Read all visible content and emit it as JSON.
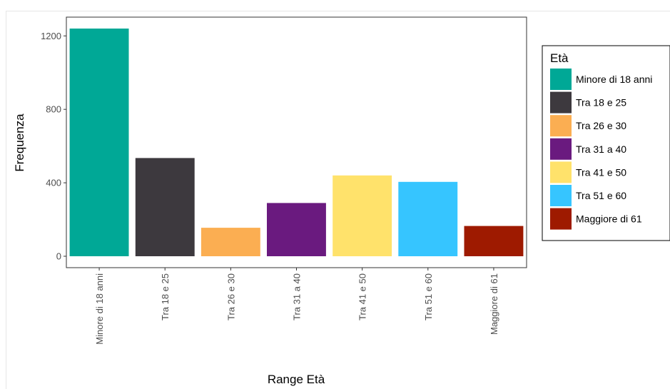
{
  "chart_data": {
    "type": "bar",
    "title": "",
    "xlabel": "Range Età",
    "ylabel": "Frequenza",
    "ylim": [
      0,
      1290
    ],
    "yticks": [
      0,
      400,
      800,
      1200
    ],
    "categories": [
      "Minore di 18 anni",
      "Tra 18 e 25",
      "Tra 26 e 30",
      "Tra 31 a 40",
      "Tra 41 e 50",
      "Tra 51 e 60",
      "Maggiore di 61"
    ],
    "values": [
      1240,
      535,
      155,
      290,
      440,
      405,
      165
    ],
    "colors": [
      "#00A896",
      "#3D393E",
      "#FBAE52",
      "#6A1A7F",
      "#FFE26B",
      "#36C5FF",
      "#9E1A00"
    ],
    "grid": false,
    "legend": {
      "title": "Età",
      "placement": "right",
      "entries": [
        "Minore di 18 anni",
        "Tra 18 e 25",
        "Tra 26 e 30",
        "Tra 31 a 40",
        "Tra 41 e 50",
        "Tra 51 e 60",
        "Maggiore di 61"
      ]
    }
  }
}
